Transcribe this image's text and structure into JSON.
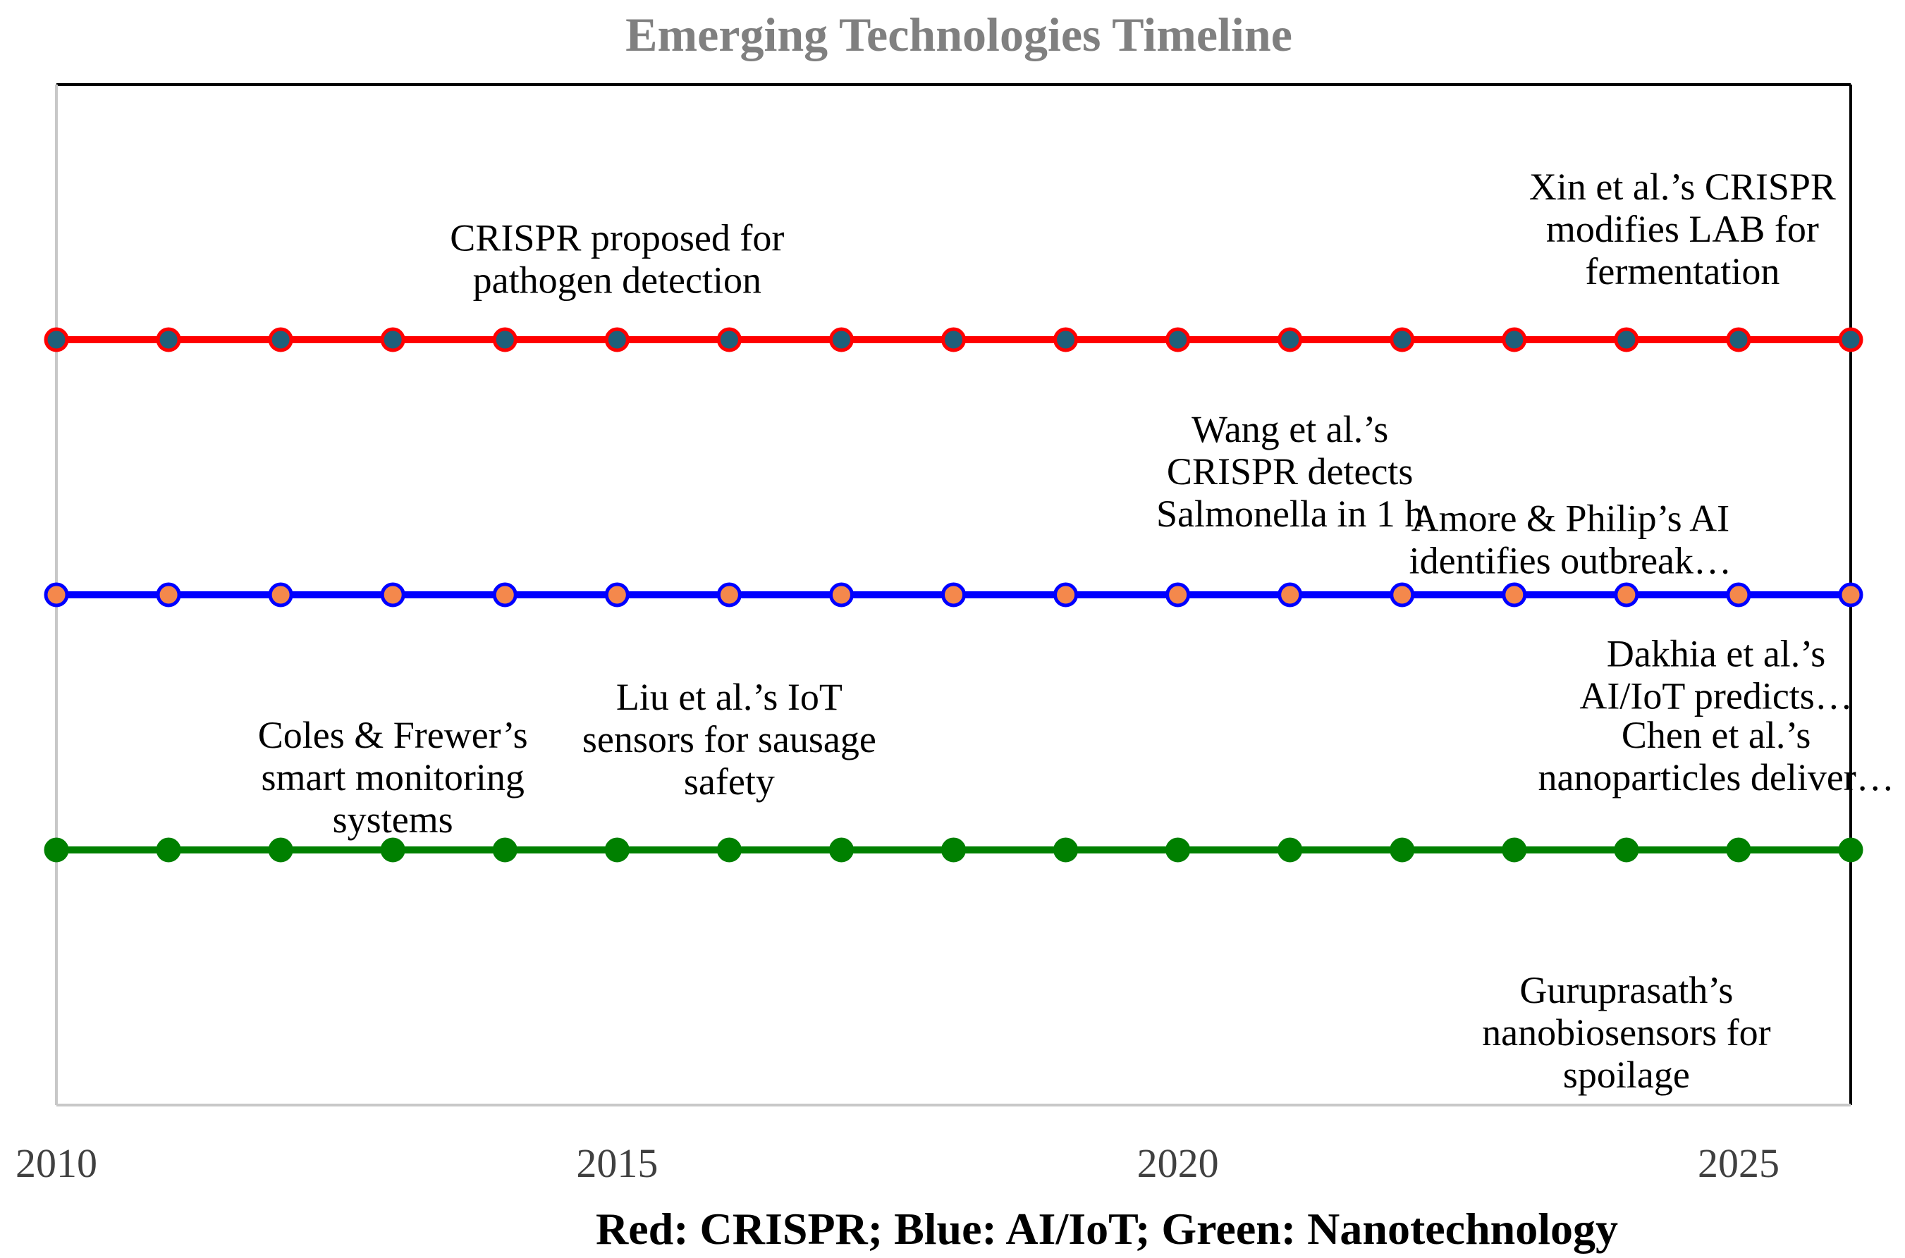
{
  "chart_data": {
    "type": "line",
    "title": "Emerging Technologies Timeline",
    "xlabel": "",
    "ylabel": "",
    "x": [
      2010,
      2011,
      2012,
      2013,
      2014,
      2015,
      2016,
      2017,
      2018,
      2019,
      2020,
      2021,
      2022,
      2023,
      2024,
      2025,
      2026
    ],
    "xlim": [
      2010,
      2026
    ],
    "x_ticks": [
      "2010",
      "2015",
      "2020",
      "2025"
    ],
    "ylim": [
      0,
      4
    ],
    "grid": false,
    "legend_text": "Red: CRISPR; Blue: AI/IoT; Green: Nanotechnology",
    "legend_position": "bottom",
    "series": [
      {
        "name": "CRISPR",
        "y": 3,
        "line_color": "#ff0000",
        "marker_fill": "#1f5f7a",
        "marker_edge": "#ff0000"
      },
      {
        "name": "AI/IoT",
        "y": 2,
        "line_color": "#0000ff",
        "marker_fill": "#f4884c",
        "marker_edge": "#0000ff"
      },
      {
        "name": "Nanotechnology",
        "y": 1,
        "line_color": "#008000",
        "marker_fill": "#008000",
        "marker_edge": "#008000"
      }
    ],
    "annotations": [
      {
        "id": "crispr-proposed",
        "x": 2015,
        "y": 3.35,
        "lines": [
          "CRISPR proposed for",
          "pathogen detection"
        ]
      },
      {
        "id": "xin-crispr",
        "x": 2024.5,
        "y": 3.55,
        "lines": [
          "Xin et al.’s CRISPR",
          "modifies LAB for",
          "fermentation"
        ]
      },
      {
        "id": "wang-crispr",
        "x": 2021,
        "y": 2.6,
        "lines": [
          "Wang et al.’s",
          "CRISPR detects",
          "Salmonella in 1 h"
        ]
      },
      {
        "id": "amore-ai",
        "x": 2023.5,
        "y": 2.25,
        "lines": [
          "Amore & Philip’s AI",
          "identifies outbreak…"
        ]
      },
      {
        "id": "liu-iot",
        "x": 2016,
        "y": 1.55,
        "lines": [
          "Liu et al.’s IoT",
          "sensors for sausage",
          "safety"
        ]
      },
      {
        "id": "coles-frewer",
        "x": 2013,
        "y": 1.4,
        "lines": [
          "Coles & Frewer’s",
          "smart monitoring",
          "systems"
        ]
      },
      {
        "id": "dakhia-aiiot",
        "x": 2024.8,
        "y": 1.72,
        "lines": [
          "Dakhia et al.’s",
          "AI/IoT predicts…"
        ]
      },
      {
        "id": "chen-nano",
        "x": 2024.8,
        "y": 1.4,
        "lines": [
          "Chen et al.’s",
          "nanoparticles deliver…"
        ]
      },
      {
        "id": "guruprasath-nano",
        "x": 2024,
        "y": 0.4,
        "lines": [
          "Guruprasath’s",
          "nanobiosensors for",
          "spoilage"
        ]
      }
    ]
  }
}
